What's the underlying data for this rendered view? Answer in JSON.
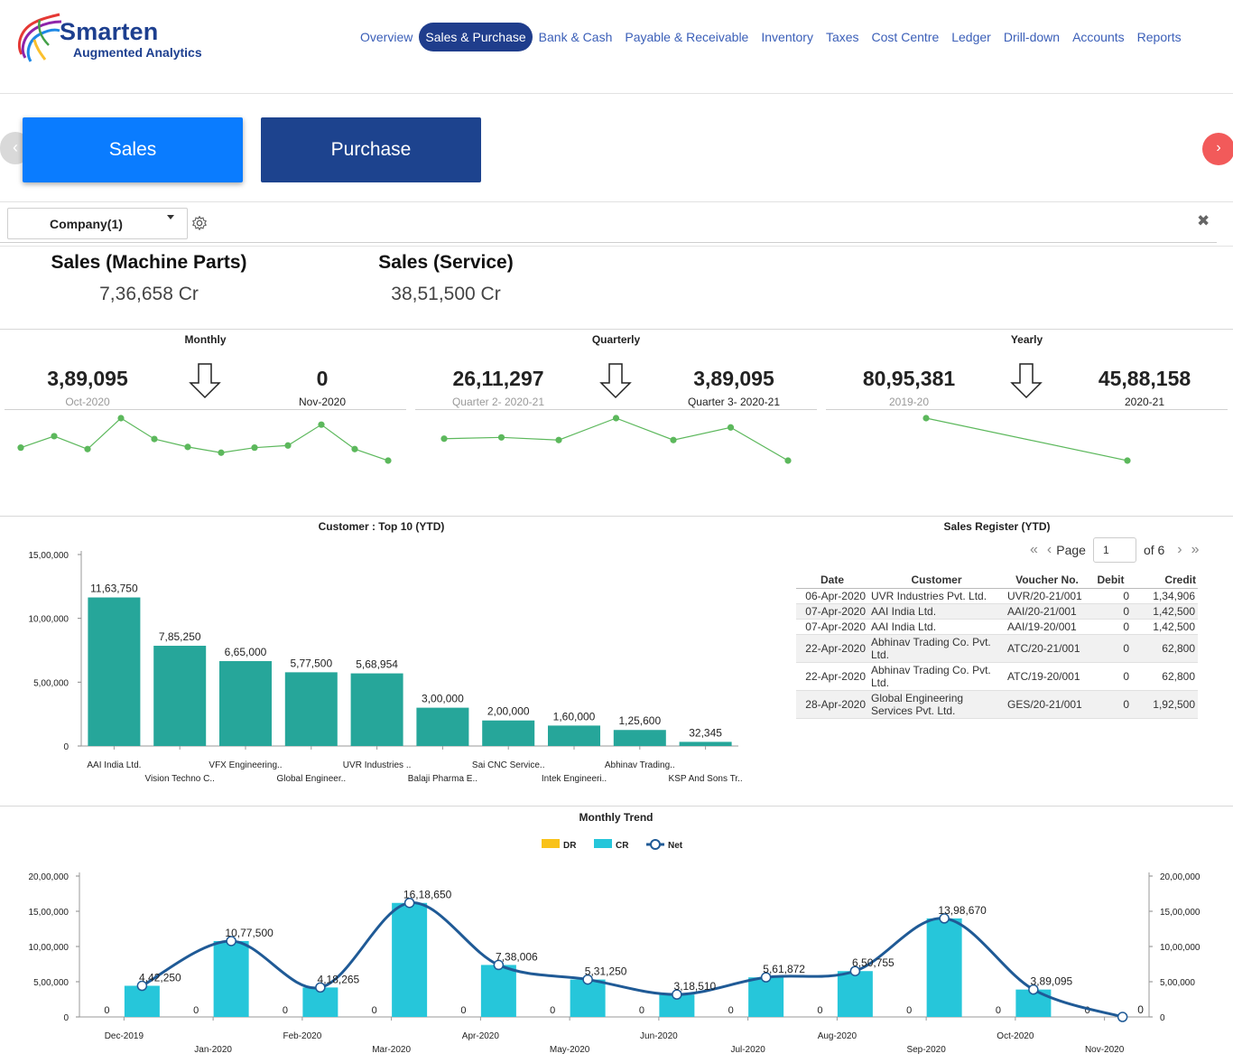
{
  "header": {
    "logo_title": "Smarten",
    "logo_subtitle": "Augmented Analytics",
    "nav": [
      "Overview",
      "Sales & Purchase",
      "Bank & Cash",
      "Payable & Receivable",
      "Inventory",
      "Taxes",
      "Cost Centre",
      "Ledger",
      "Drill-down",
      "Accounts",
      "Reports"
    ],
    "active_nav": "Sales & Purchase"
  },
  "tabs": {
    "sales": "Sales",
    "purchase": "Purchase"
  },
  "filter": {
    "company": "Company(1)"
  },
  "kpis": [
    {
      "title": "Sales (Machine Parts)",
      "value": "7,36,658 Cr"
    },
    {
      "title": "Sales (Service)",
      "value": "38,51,500 Cr"
    }
  ],
  "trends": {
    "monthly": {
      "title": "Monthly",
      "left_value": "3,89,095",
      "left_period": "Oct-2020",
      "right_value": "0",
      "right_period": "Nov-2020",
      "spark": [
        3.3,
        4.9,
        3.1,
        7.4,
        4.5,
        3.4,
        2.6,
        3.3,
        3.6,
        6.5,
        3.1,
        1.5
      ]
    },
    "quarterly": {
      "title": "Quarterly",
      "left_value": "26,11,297",
      "left_period": "Quarter 2- 2020-21",
      "right_value": "3,89,095",
      "right_period": "Quarter 3- 2020-21",
      "spark": [
        20.5,
        21.5,
        19.5,
        36.0,
        19.5,
        29.0,
        4.0
      ]
    },
    "yearly": {
      "title": "Yearly",
      "left_value": "80,95,381",
      "left_period": "2019-20",
      "right_value": "45,88,158",
      "right_period": "2020-21",
      "spark": [
        80.95,
        45.88
      ]
    }
  },
  "customer_chart_title": "Customer : Top 10 (YTD)",
  "register": {
    "title": "Sales Register (YTD)",
    "page_label": "Page",
    "page_value": "1",
    "page_of": "of 6",
    "columns": [
      "Date",
      "Customer",
      "Voucher No.",
      "Debit",
      "Credit"
    ],
    "rows": [
      [
        "06-Apr-2020",
        "UVR Industries Pvt. Ltd.",
        "UVR/20-21/001",
        "0",
        "1,34,906"
      ],
      [
        "07-Apr-2020",
        "AAI India Ltd.",
        "AAI/20-21/001",
        "0",
        "1,42,500"
      ],
      [
        "07-Apr-2020",
        "AAI India Ltd.",
        "AAI/19-20/001",
        "0",
        "1,42,500"
      ],
      [
        "22-Apr-2020",
        "Abhinav Trading Co. Pvt. Ltd.",
        "ATC/20-21/001",
        "0",
        "62,800"
      ],
      [
        "22-Apr-2020",
        "Abhinav Trading Co. Pvt. Ltd.",
        "ATC/19-20/001",
        "0",
        "62,800"
      ],
      [
        "28-Apr-2020",
        "Global Engineering Services Pvt. Ltd.",
        "GES/20-21/001",
        "0",
        "1,92,500"
      ]
    ]
  },
  "monthly_trend_title": "Monthly Trend",
  "colors": {
    "accent": "#0a7cff",
    "nav_active": "#1f3d8c",
    "bar_teal": "#26a69a",
    "bar_cyan": "#26c6da",
    "net_line": "#1f5a96",
    "dr": "#f9c21a",
    "spark": "#5cb85c"
  },
  "chart_data": [
    {
      "type": "bar",
      "title": "Customer : Top 10 (YTD)",
      "categories": [
        "AAI India Ltd.",
        "Vision Techno C..",
        "VFX Engineering..",
        "Global Engineer..",
        "UVR Industries ..",
        "Balaji Pharma E..",
        "Sai CNC Service..",
        "Intek Engineeri..",
        "Abhinav Trading..",
        "KSP And Sons Tr.."
      ],
      "values": [
        1163750,
        785250,
        665000,
        577500,
        568954,
        300000,
        200000,
        160000,
        125600,
        32345
      ],
      "value_labels": [
        "11,63,750",
        "7,85,250",
        "6,65,000",
        "5,77,500",
        "5,68,954",
        "3,00,000",
        "2,00,000",
        "1,60,000",
        "1,25,600",
        "32,345"
      ],
      "yticks": [
        "0",
        "5,00,000",
        "10,00,000",
        "15,00,000"
      ],
      "ylim": [
        0,
        1500000
      ]
    },
    {
      "type": "bar",
      "title": "Monthly Trend",
      "legend": [
        "DR",
        "CR",
        "Net"
      ],
      "categories": [
        "Dec-2019",
        "Jan-2020",
        "Feb-2020",
        "Mar-2020",
        "Apr-2020",
        "May-2020",
        "Jun-2020",
        "Jul-2020",
        "Aug-2020",
        "Sep-2020",
        "Oct-2020",
        "Nov-2020"
      ],
      "series": [
        {
          "name": "DR",
          "values": [
            0,
            0,
            0,
            0,
            0,
            0,
            0,
            0,
            0,
            0,
            0,
            0
          ]
        },
        {
          "name": "CR",
          "values": [
            442250,
            1077500,
            418265,
            1618650,
            738006,
            531250,
            318510,
            561872,
            650755,
            1398670,
            389095,
            0
          ]
        },
        {
          "name": "Net",
          "values": [
            442250,
            1077500,
            418265,
            1618650,
            738006,
            531250,
            318510,
            561872,
            650755,
            1398670,
            389095,
            0
          ]
        }
      ],
      "dr_labels": [
        "0",
        "0",
        "0",
        "0",
        "0",
        "0",
        "0",
        "0",
        "0",
        "0",
        "0",
        "0"
      ],
      "net_labels": [
        "4,42,250",
        "10,77,500",
        "4,18,265",
        "16,18,650",
        "7,38,006",
        "5,31,250",
        "3,18,510",
        "5,61,872",
        "6,50,755",
        "13,98,670",
        "3,89,095",
        "0"
      ],
      "yticks": [
        "0",
        "5,00,000",
        "10,00,000",
        "15,00,000",
        "20,00,000"
      ],
      "ylim": [
        0,
        2000000
      ]
    }
  ]
}
